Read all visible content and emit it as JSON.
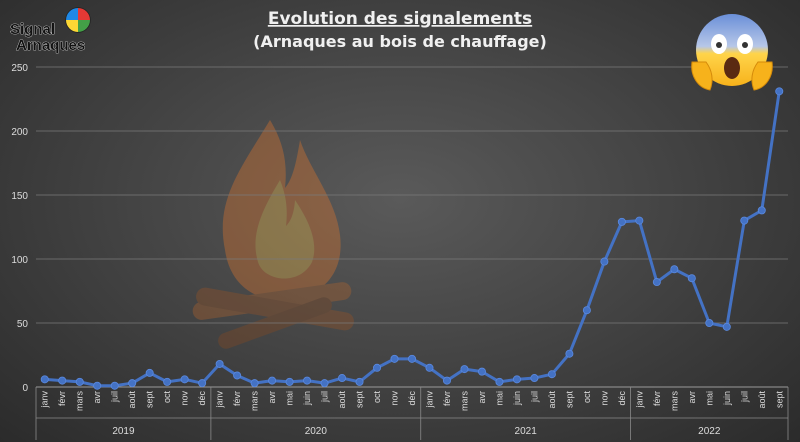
{
  "logo": {
    "line1": "Signal",
    "line2": "Arnaques"
  },
  "chart_data": {
    "type": "line",
    "title": "Evolution des signalements",
    "subtitle": "(Arnaques au bois de chauffage)",
    "ylim": [
      0,
      250
    ],
    "yticks": [
      0,
      50,
      100,
      150,
      200,
      250
    ],
    "grid": true,
    "line_color": "#4472C4",
    "months": [
      "janv",
      "févr",
      "mars",
      "avr",
      "mai",
      "juin",
      "juil",
      "août",
      "sept",
      "oct",
      "nov",
      "déc"
    ],
    "years": [
      {
        "label": "2019",
        "start": 0,
        "count": 10
      },
      {
        "label": "2020",
        "start": 10,
        "count": 12
      },
      {
        "label": "2021",
        "start": 22,
        "count": 12
      },
      {
        "label": "2022",
        "start": 34,
        "count": 9
      }
    ],
    "categories": [
      "janv",
      "févr",
      "mars",
      "avr",
      "juil",
      "août",
      "sept",
      "oct",
      "nov",
      "déc",
      "janv",
      "févr",
      "mars",
      "avr",
      "mai",
      "juin",
      "juil",
      "août",
      "sept",
      "oct",
      "nov",
      "déc",
      "janv",
      "févr",
      "mars",
      "avr",
      "mai",
      "juin",
      "juil",
      "août",
      "sept",
      "oct",
      "nov",
      "déc",
      "janv",
      "févr",
      "mars",
      "avr",
      "mai",
      "juin",
      "juil",
      "août",
      "sept"
    ],
    "values": [
      6,
      5,
      4,
      1,
      1,
      3,
      11,
      4,
      6,
      3,
      18,
      9,
      3,
      5,
      4,
      5,
      3,
      7,
      4,
      15,
      22,
      22,
      15,
      5,
      14,
      12,
      4,
      6,
      7,
      10,
      26,
      60,
      98,
      129,
      130,
      82,
      92,
      85,
      50,
      47,
      130,
      138,
      231
    ]
  }
}
